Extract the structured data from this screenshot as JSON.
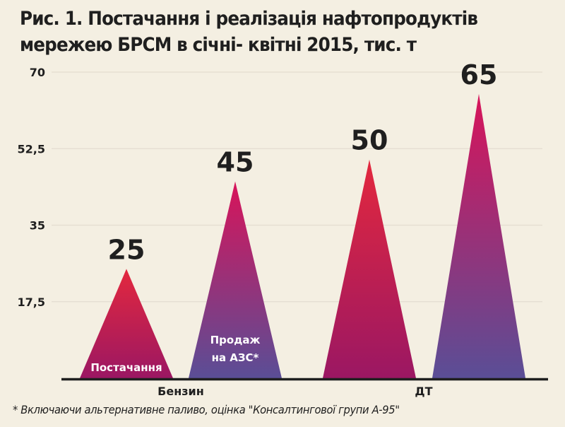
{
  "chart_data": {
    "type": "bar",
    "mark_shape": "triangle",
    "title": "Рис. 1. Постачання і реалізація нафтопродуктів мережею БРСМ в січні- квітні 2015, тис. т",
    "title_lines": [
      "Рис. 1. Постачання і реалізація нафтопродуктів",
      "мережею БРСМ в січні- квітні 2015, тис. т"
    ],
    "xlabel": "",
    "ylabel": "",
    "ylim": [
      0,
      70
    ],
    "yticks": [
      17.5,
      35,
      52.5,
      70
    ],
    "ytick_labels": [
      "17,5",
      "35",
      "52,5",
      "70"
    ],
    "grid": true,
    "categories": [
      "Бензин",
      "ДТ"
    ],
    "series": [
      {
        "name": "Постачання",
        "values": [
          25,
          50
        ],
        "color_top": "#e3283e",
        "color_bottom": "#9b1763"
      },
      {
        "name": "Продаж на АЗС*",
        "name_lines": [
          "Продаж",
          "на АЗС*"
        ],
        "values": [
          45,
          65
        ],
        "color_top": "#d8145a",
        "color_bottom": "#5a4e96"
      }
    ],
    "data_labels": [
      [
        "25",
        "50"
      ],
      [
        "45",
        "65"
      ]
    ],
    "legend": "inside-bars"
  },
  "footnote": "* Включаючи альтернативне паливо, оцінка \"Консалтингової групи А-95\"",
  "colors": {
    "background": "#f4efe2",
    "text": "#1f1f1f",
    "gridline": "#e3ddd0",
    "axis": "#1f1f1f"
  }
}
